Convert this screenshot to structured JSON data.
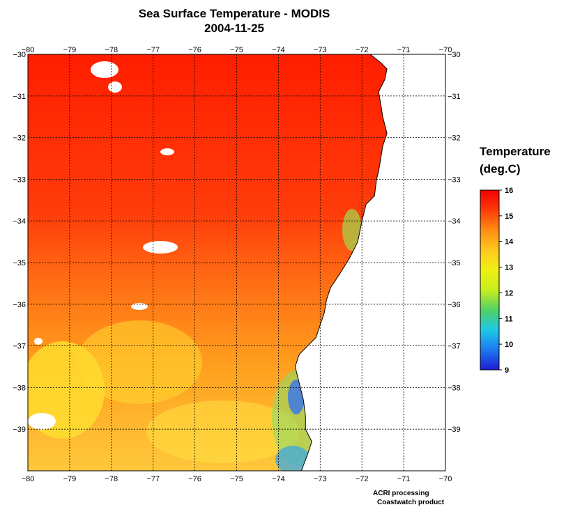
{
  "header": {
    "title": "Sea Surface Temperature - MODIS",
    "date": "2004-11-25"
  },
  "map": {
    "lon_range": [
      -80,
      -70
    ],
    "lat_range": [
      -40,
      -30
    ],
    "lon_ticks": [
      -80,
      -79,
      -78,
      -77,
      -76,
      -75,
      -74,
      -73,
      -72,
      -71,
      -70
    ],
    "lat_ticks": [
      -30,
      -31,
      -32,
      -33,
      -34,
      -35,
      -36,
      -37,
      -38,
      -39
    ],
    "lon_tick_labels": [
      "−80",
      "−79",
      "−78",
      "−77",
      "−76",
      "−75",
      "−74",
      "−73",
      "−72",
      "−71",
      "−70"
    ],
    "lat_tick_labels": [
      "−30",
      "−31",
      "−32",
      "−33",
      "−34",
      "−35",
      "−36",
      "−37",
      "−38",
      "−39"
    ],
    "grid": true,
    "coastline_lonlat": [
      [
        -71.8,
        -30.0
      ],
      [
        -71.55,
        -30.2
      ],
      [
        -71.4,
        -30.35
      ],
      [
        -71.45,
        -30.6
      ],
      [
        -71.6,
        -30.9
      ],
      [
        -71.55,
        -31.2
      ],
      [
        -71.5,
        -31.5
      ],
      [
        -71.4,
        -31.9
      ],
      [
        -71.5,
        -32.2
      ],
      [
        -71.55,
        -32.5
      ],
      [
        -71.6,
        -32.8
      ],
      [
        -71.65,
        -33.0
      ],
      [
        -71.7,
        -33.4
      ],
      [
        -71.9,
        -33.6
      ],
      [
        -72.0,
        -34.0
      ],
      [
        -72.1,
        -34.5
      ],
      [
        -72.3,
        -34.9
      ],
      [
        -72.55,
        -35.3
      ],
      [
        -72.75,
        -35.6
      ],
      [
        -72.85,
        -35.9
      ],
      [
        -72.9,
        -36.2
      ],
      [
        -73.0,
        -36.5
      ],
      [
        -73.1,
        -36.8
      ],
      [
        -73.5,
        -37.2
      ],
      [
        -73.6,
        -37.5
      ],
      [
        -73.5,
        -37.9
      ],
      [
        -73.4,
        -38.3
      ],
      [
        -73.35,
        -38.7
      ],
      [
        -73.35,
        -39.0
      ],
      [
        -73.2,
        -39.3
      ],
      [
        -73.3,
        -39.6
      ],
      [
        -73.45,
        -40.0
      ]
    ]
  },
  "legend": {
    "title_line1": "Temperature",
    "title_line2": "(deg.C)",
    "ticks": [
      16,
      15,
      14,
      13,
      12,
      11,
      10,
      9
    ],
    "min": 9,
    "max": 16,
    "colors": [
      "#1e1ed2",
      "#1e78f0",
      "#1ec8e6",
      "#50d264",
      "#c8ee1e",
      "#f0f014",
      "#ffc81e",
      "#ff8c14",
      "#ff3c0a",
      "#f00000"
    ]
  },
  "credits": {
    "line1": "ACRI processing",
    "line2": "Coastwatch product"
  }
}
